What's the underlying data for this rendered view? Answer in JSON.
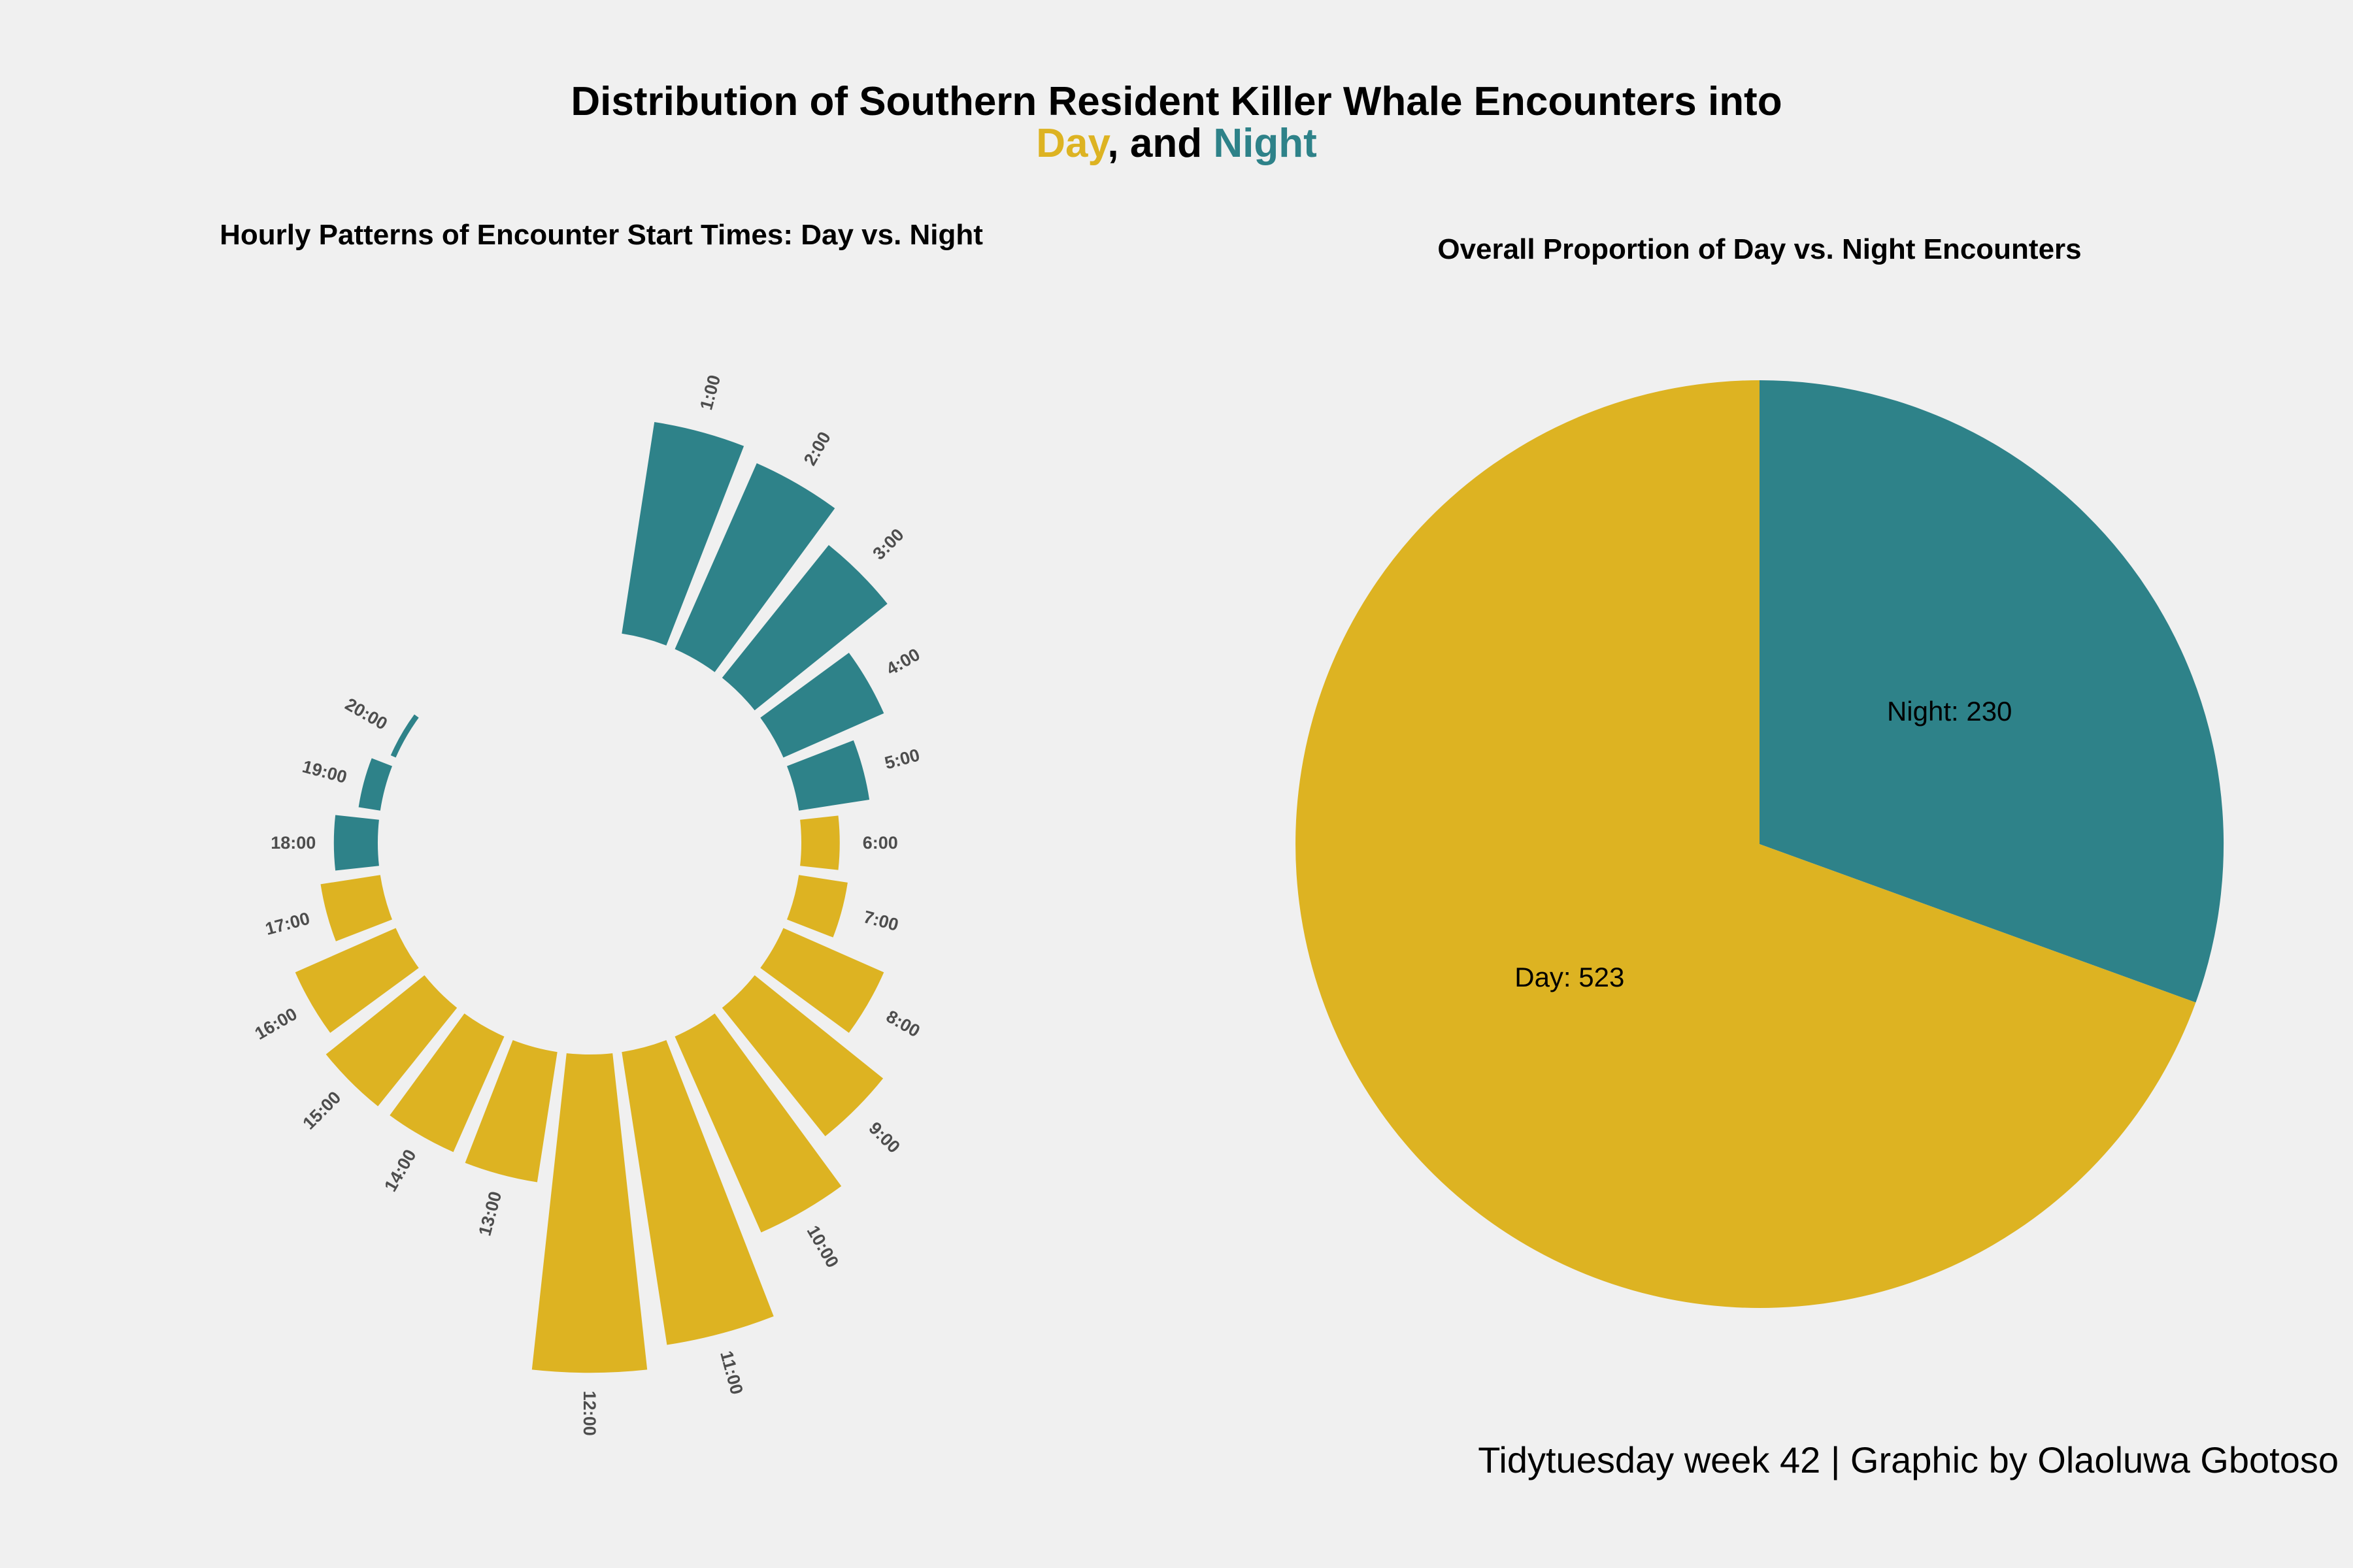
{
  "title_line1": "Distribution of Southern Resident Killer Whale Encounters into",
  "title_line2": {
    "day": "Day",
    "sep": ", and ",
    "night": "Night"
  },
  "caption": "Tidytuesday week 42 | Graphic by Olaoluwa Gbotoso",
  "colors": {
    "day": "#ddb322",
    "night": "#2e8289",
    "background": "#f0f0f0"
  },
  "chart_data": [
    {
      "type": "bar",
      "polar": true,
      "title": "Hourly Patterns of Encounter Start Times: Day vs. Night",
      "categories": [
        "1:00",
        "2:00",
        "3:00",
        "4:00",
        "5:00",
        "6:00",
        "7:00",
        "8:00",
        "9:00",
        "10:00",
        "11:00",
        "12:00",
        "13:00",
        "14:00",
        "15:00",
        "16:00",
        "17:00",
        "18:00",
        "19:00",
        "20:00"
      ],
      "values": [
        39,
        37,
        31,
        20,
        13,
        7,
        9,
        20,
        30,
        39,
        54,
        58,
        24,
        23,
        23,
        20,
        11,
        8,
        4,
        1
      ],
      "period": [
        "Night",
        "Night",
        "Night",
        "Night",
        "Night",
        "Day",
        "Day",
        "Day",
        "Day",
        "Day",
        "Day",
        "Day",
        "Day",
        "Day",
        "Day",
        "Day",
        "Day",
        "Night",
        "Night",
        "Night"
      ]
    },
    {
      "type": "pie",
      "title": "Overall Proportion of Day vs. Night Encounters",
      "slices": [
        {
          "name": "Night",
          "value": 230,
          "label": "Night: 230"
        },
        {
          "name": "Day",
          "value": 523,
          "label": "Day: 523"
        }
      ]
    }
  ]
}
